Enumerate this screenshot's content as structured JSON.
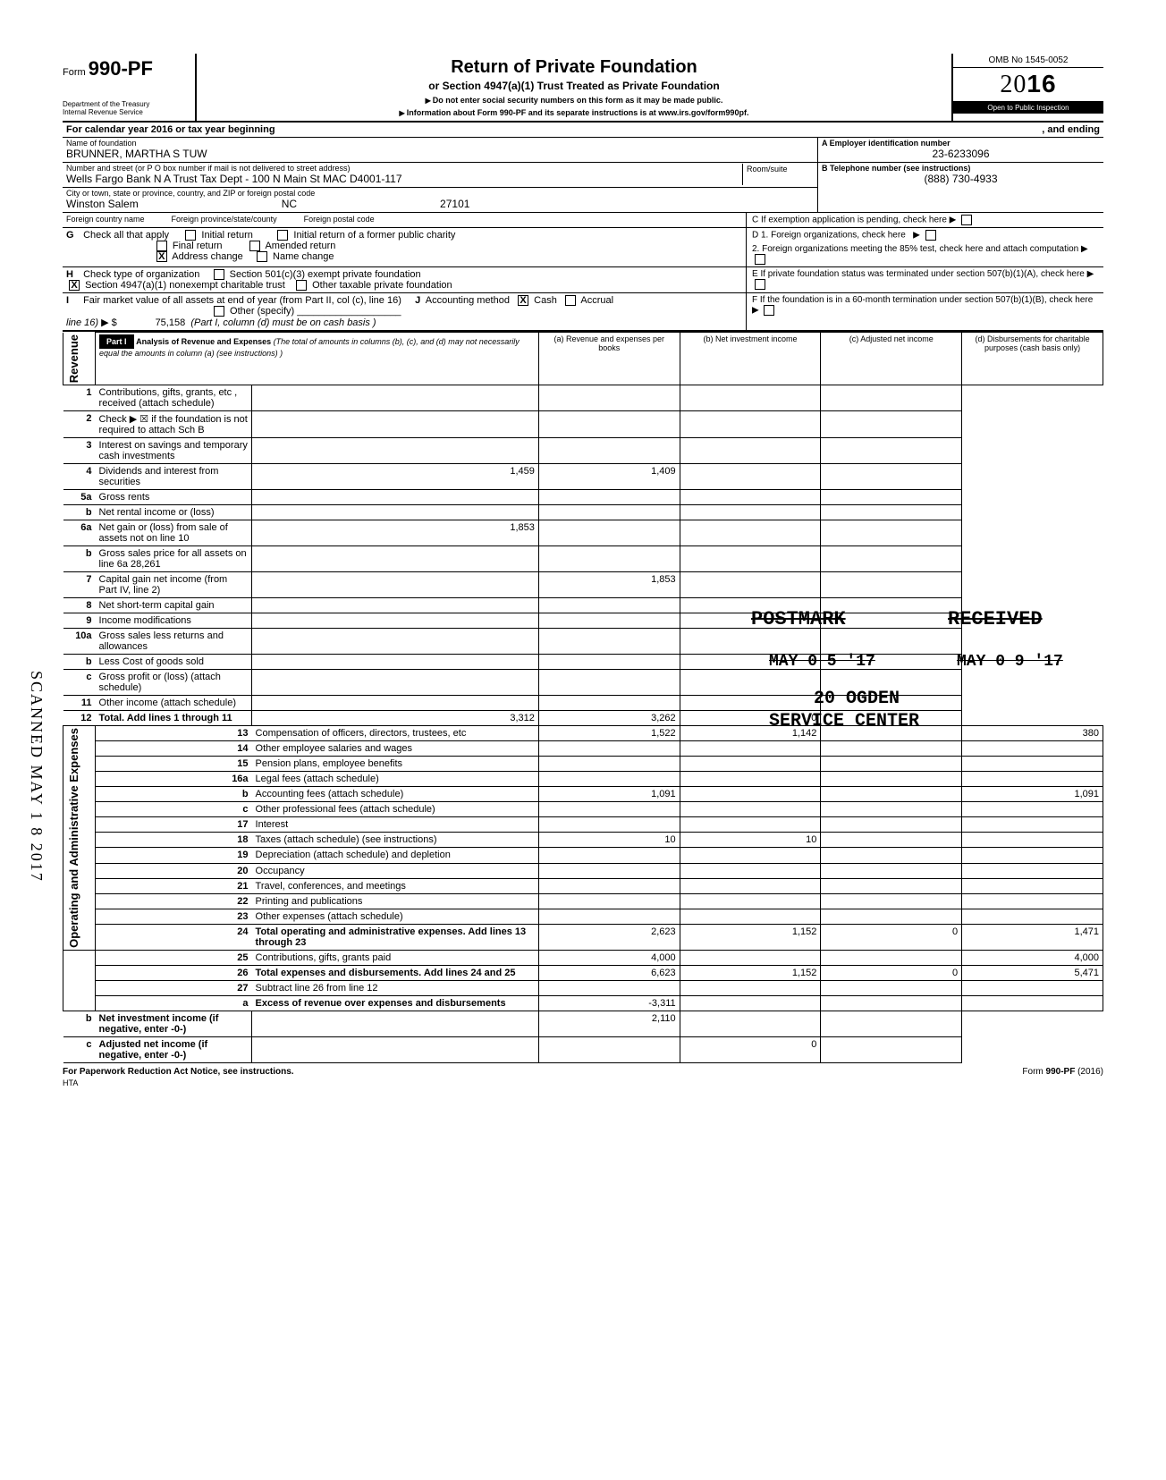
{
  "header": {
    "form_label": "Form",
    "form_number": "990-PF",
    "dept_line1": "Department of the Treasury",
    "dept_line2": "Internal Revenue Service",
    "title": "Return of Private Foundation",
    "subtitle": "or Section 4947(a)(1) Trust Treated as Private Foundation",
    "note1": "Do not enter social security numbers on this form as it may be made public.",
    "note2": "Information about Form 990-PF and its separate instructions is at www.irs.gov/form990pf.",
    "omb": "OMB No  1545-0052",
    "year_prefix": "20",
    "year_suffix": "16",
    "inspection": "Open to Public Inspection"
  },
  "cal_year": {
    "left": "For calendar year 2016 or tax year beginning",
    "right": ", and ending"
  },
  "id": {
    "name_label": "Name of foundation",
    "name": "BRUNNER, MARTHA S TUW",
    "street_label": "Number and street (or P O  box number if mail is not delivered to street address)",
    "street": "Wells Fargo Bank N A  Trust Tax Dept - 100 N Main St MAC D4001-117",
    "room_label": "Room/suite",
    "city_label": "City or town, state or province, country, and ZIP or foreign postal code",
    "city": "Winston Salem",
    "state": "NC",
    "zip": "27101",
    "foreign_country_label": "Foreign country name",
    "foreign_province_label": "Foreign province/state/county",
    "foreign_postal_label": "Foreign postal code",
    "a_label": "A  Employer identification number",
    "ein": "23-6233096",
    "b_label": "B  Telephone number (see instructions)",
    "phone": "(888) 730-4933",
    "c_label": "C   If exemption application is pending, check here",
    "d1_label": "D  1. Foreign organizations, check here",
    "d2_label": "2. Foreign organizations meeting the 85% test, check here and attach computation",
    "e_label": "E   If private foundation status was terminated under section 507(b)(1)(A), check here",
    "f_label": "F   If the foundation is in a 60-month termination under section 507(b)(1)(B), check here"
  },
  "sec_g": {
    "label": "Check all that apply",
    "opts": [
      "Initial return",
      "Final return",
      "Address change",
      "Initial return of a former public charity",
      "Amended return",
      "Name change"
    ]
  },
  "sec_h": {
    "label": "Check type of organization",
    "opt1": "Section 501(c)(3) exempt private foundation",
    "opt2": "Section 4947(a)(1) nonexempt charitable trust",
    "opt3": "Other taxable private foundation"
  },
  "sec_i": {
    "label": "Fair market value of all assets at end of year (from Part II, col  (c), line 16)",
    "val": "75,158",
    "j_label": "Accounting method",
    "j_opts": [
      "Cash",
      "Accrual"
    ],
    "other": "Other (specify)",
    "note": "(Part I, column (d) must be on cash basis )"
  },
  "part1": {
    "header": "Part I",
    "title": "Analysis of Revenue and Expenses",
    "note": "(The total of amounts in columns (b), (c), and (d) may not necessarily equal the amounts in column (a) (see instructions) )",
    "col_a": "(a)  Revenue and expenses per books",
    "col_b": "(b) Net investment income",
    "col_c": "(c) Adjusted net income",
    "col_d": "(d)  Disbursements for charitable purposes (cash basis only)"
  },
  "rows": [
    {
      "n": "1",
      "d": "Contributions, gifts, grants, etc , received (attach schedule)"
    },
    {
      "n": "2",
      "d": "Check ▶ ☒ if the foundation is not required to attach Sch  B"
    },
    {
      "n": "3",
      "d": "Interest on savings and temporary cash investments"
    },
    {
      "n": "4",
      "d": "Dividends and interest from securities",
      "a": "1,459",
      "b": "1,409"
    },
    {
      "n": "5a",
      "d": "Gross rents"
    },
    {
      "n": "b",
      "d": "Net rental income or (loss)"
    },
    {
      "n": "6a",
      "d": "Net gain or (loss) from sale of assets not on line 10",
      "a": "1,853"
    },
    {
      "n": "b",
      "d": "Gross sales price for all assets on line 6a                        28,261"
    },
    {
      "n": "7",
      "d": "Capital gain net income (from Part IV, line 2)",
      "b": "1,853"
    },
    {
      "n": "8",
      "d": "Net short-term capital gain"
    },
    {
      "n": "9",
      "d": "Income modifications"
    },
    {
      "n": "10a",
      "d": "Gross sales less returns and allowances"
    },
    {
      "n": "b",
      "d": "Less  Cost of goods sold"
    },
    {
      "n": "c",
      "d": "Gross profit or (loss) (attach schedule)"
    },
    {
      "n": "11",
      "d": "Other income (attach schedule)"
    },
    {
      "n": "12",
      "d": "Total.  Add lines 1 through 11",
      "a": "3,312",
      "b": "3,262",
      "c": "0",
      "bold": true
    },
    {
      "n": "13",
      "d": "Compensation of officers, directors, trustees, etc",
      "a": "1,522",
      "b": "1,142",
      "d4": "380"
    },
    {
      "n": "14",
      "d": "Other employee salaries and wages"
    },
    {
      "n": "15",
      "d": "Pension plans, employee benefits"
    },
    {
      "n": "16a",
      "d": "Legal fees (attach schedule)"
    },
    {
      "n": "b",
      "d": "Accounting fees (attach schedule)",
      "a": "1,091",
      "d4": "1,091"
    },
    {
      "n": "c",
      "d": "Other professional fees (attach schedule)"
    },
    {
      "n": "17",
      "d": "Interest"
    },
    {
      "n": "18",
      "d": "Taxes (attach schedule) (see instructions)",
      "a": "10",
      "b": "10"
    },
    {
      "n": "19",
      "d": "Depreciation (attach schedule) and depletion"
    },
    {
      "n": "20",
      "d": "Occupancy"
    },
    {
      "n": "21",
      "d": "Travel, conferences, and meetings"
    },
    {
      "n": "22",
      "d": "Printing and publications"
    },
    {
      "n": "23",
      "d": "Other expenses (attach schedule)"
    },
    {
      "n": "24",
      "d": "Total operating and administrative expenses. Add lines 13 through 23",
      "a": "2,623",
      "b": "1,152",
      "c": "0",
      "d4": "1,471",
      "bold": true
    },
    {
      "n": "25",
      "d": "Contributions, gifts, grants paid",
      "a": "4,000",
      "d4": "4,000"
    },
    {
      "n": "26",
      "d": "Total expenses and disbursements. Add lines 24 and 25",
      "a": "6,623",
      "b": "1,152",
      "c": "0",
      "d4": "5,471",
      "bold": true
    },
    {
      "n": "27",
      "d": "Subtract line 26 from line 12"
    },
    {
      "n": "a",
      "d": "Excess of revenue over expenses and disbursements",
      "a": "-3,311",
      "bold": true
    },
    {
      "n": "b",
      "d": "Net investment income (if negative, enter -0-)",
      "b": "2,110",
      "bold": true
    },
    {
      "n": "c",
      "d": "Adjusted net income (if negative, enter -0-)",
      "c": "0",
      "bold": true
    }
  ],
  "sections": {
    "revenue": "Revenue",
    "expenses": "Operating and Administrative Expenses"
  },
  "stamps": {
    "scanned": "SCANNED MAY 1 8 2017",
    "postmark": "POSTMARK",
    "received": "RECEIVED",
    "date1": "MAY 0 5 '17",
    "date2": "MAY 0 9 '17",
    "ogden1": "20 OGDEN",
    "ogden2": "SERVICE CENTER"
  },
  "footer": {
    "left": "For Paperwork Reduction Act Notice, see instructions.",
    "mid": "HTA",
    "right": "Form 990-PF (2016)"
  }
}
